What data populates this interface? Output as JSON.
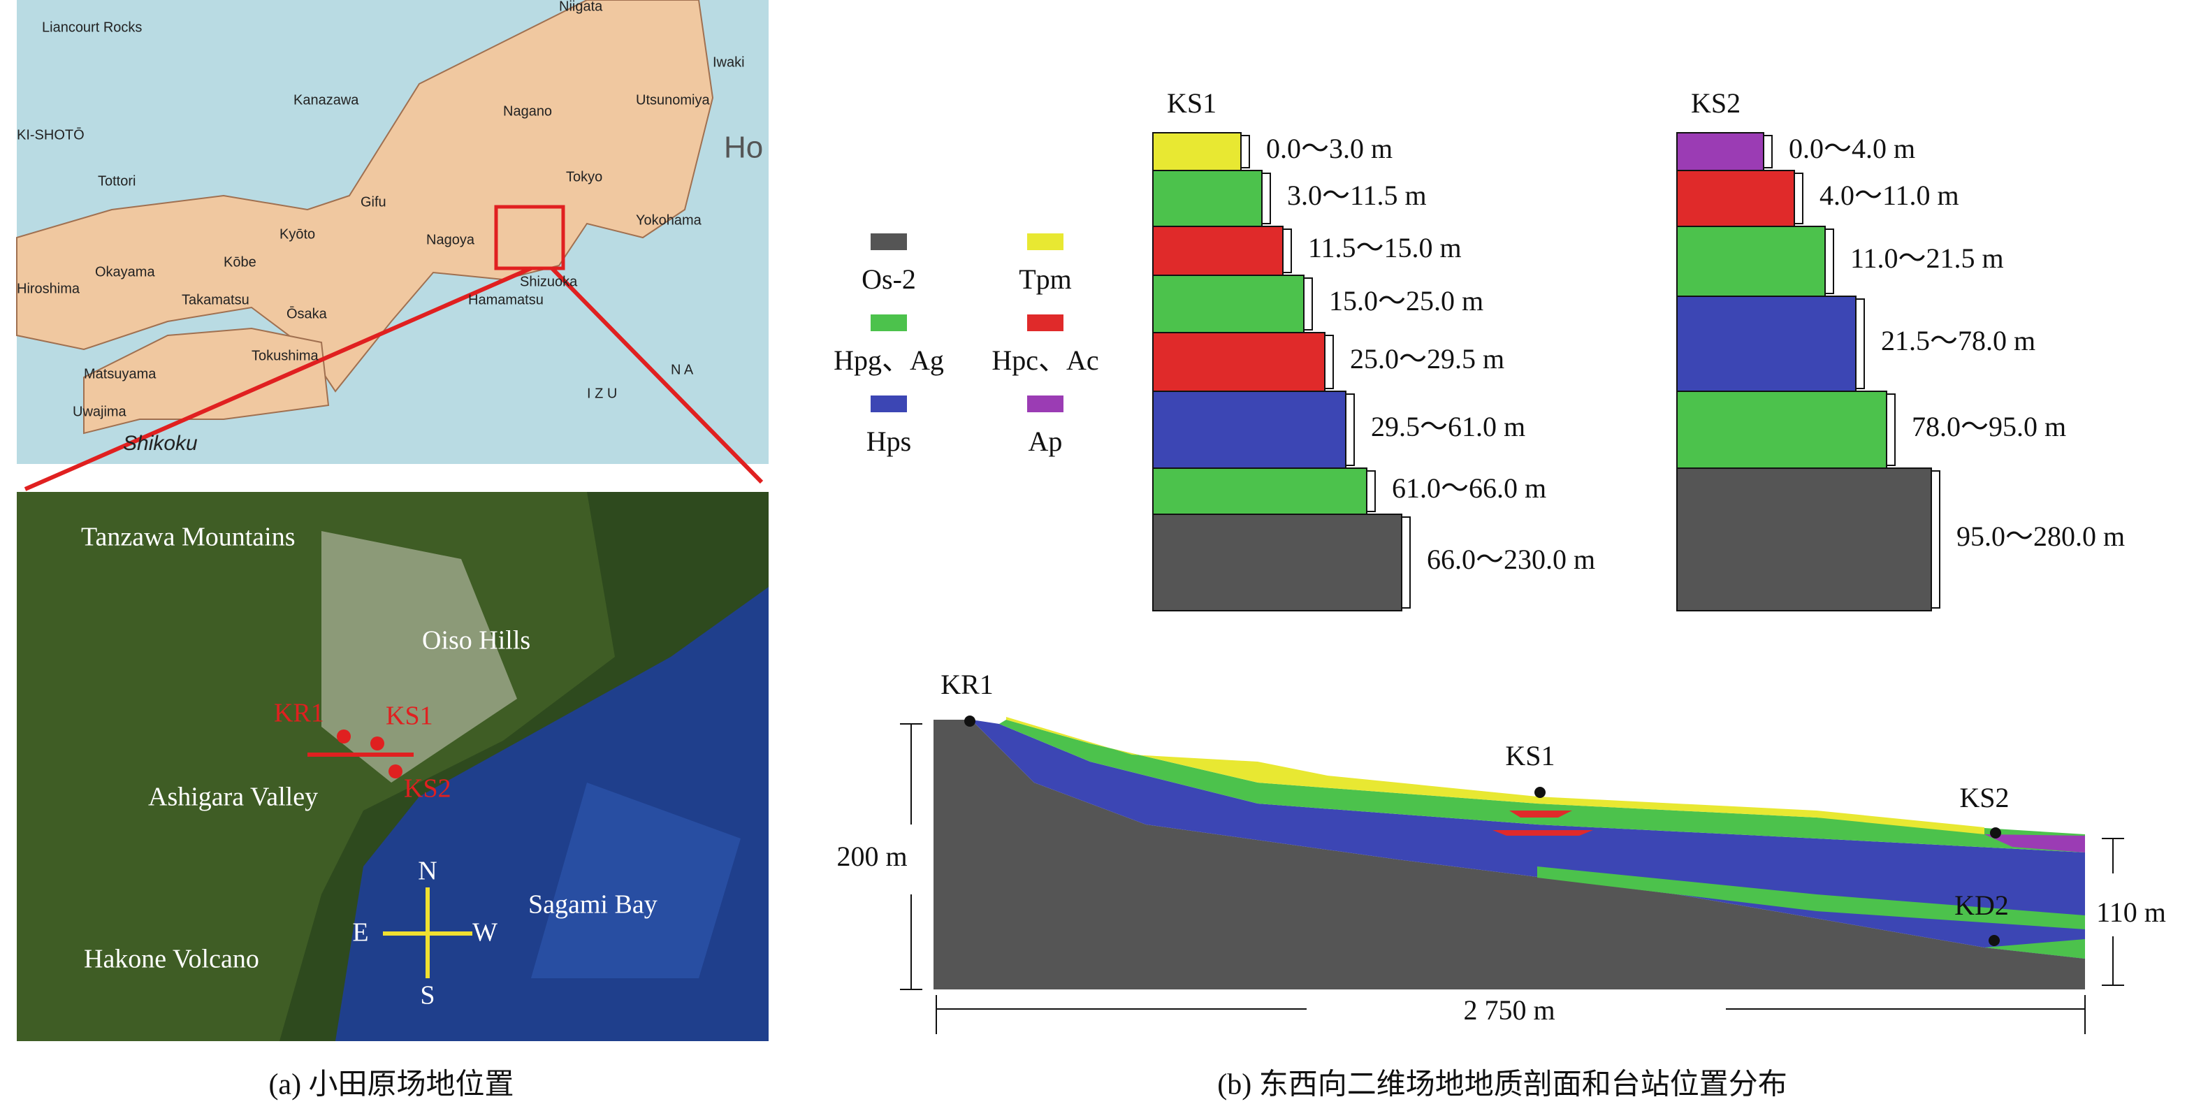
{
  "map_panel": {
    "japan_labels": [
      "Liancourt Rocks",
      "Niigata",
      "Iwaki",
      "Kanazawa",
      "Nagano",
      "Utsunomiya",
      "KI-SHOTŌ",
      "Ho",
      "Tottori",
      "Gifu",
      "Tokyo",
      "Yokohama",
      "Hiroshima",
      "Okayama",
      "Kōbe",
      "Kyōto",
      "Nagoya",
      "Shizuoka",
      "Hamamatsu",
      "Takamatsu",
      "Ōsaka",
      "Tokushima",
      "Matsuyama",
      "Uwajima",
      "Shikoku",
      "I Z U",
      "N A"
    ],
    "satellite_labels": [
      "Tanzawa Mountains",
      "Oiso Hills",
      "Ashigara Valley",
      "Sagami Bay",
      "Hakone Volcano"
    ],
    "stations": [
      "KR1",
      "KS1",
      "KS2"
    ],
    "compass": [
      "N",
      "E",
      "W",
      "S"
    ],
    "caption": "(a) 小田原场地位置"
  },
  "legend": [
    {
      "label": "Os-2",
      "color": "#555555"
    },
    {
      "label": "Tpm",
      "color": "#e8e832"
    },
    {
      "label": "Hpg、Ag",
      "color": "#4cc24c"
    },
    {
      "label": "Hpc、Ac",
      "color": "#e02a2a"
    },
    {
      "label": "Hps",
      "color": "#3c46b4"
    },
    {
      "label": "Ap",
      "color": "#9b3cb4"
    }
  ],
  "columns": [
    {
      "name": "KS1",
      "layers": [
        {
          "label": "0.0～3.0 m",
          "color": "#e8e832"
        },
        {
          "label": "3.0～11.5 m",
          "color": "#4cc24c"
        },
        {
          "label": "11.5～15.0 m",
          "color": "#e02a2a"
        },
        {
          "label": "15.0～25.0 m",
          "color": "#4cc24c"
        },
        {
          "label": "25.0～29.5 m",
          "color": "#e02a2a"
        },
        {
          "label": "29.5～61.0 m",
          "color": "#3c46b4"
        },
        {
          "label": "61.0～66.0 m",
          "color": "#4cc24c"
        },
        {
          "label": "66.0～230.0 m",
          "color": "#555555"
        }
      ]
    },
    {
      "name": "KS2",
      "layers": [
        {
          "label": "0.0～4.0 m",
          "color": "#9b3cb4"
        },
        {
          "label": "4.0～11.0 m",
          "color": "#e02a2a"
        },
        {
          "label": "11.0～21.5 m",
          "color": "#4cc24c"
        },
        {
          "label": "21.5～78.0 m",
          "color": "#3c46b4"
        },
        {
          "label": "78.0～95.0 m",
          "color": "#4cc24c"
        },
        {
          "label": "95.0～280.0 m",
          "color": "#555555"
        }
      ]
    }
  ],
  "section": {
    "stations": [
      "KR1",
      "KS1",
      "KS2",
      "KD2"
    ],
    "depth_left": "200 m",
    "depth_right": "110 m",
    "length": "2 750 m",
    "caption": "(b) 东西向二维场地地质剖面和台站位置分布"
  }
}
